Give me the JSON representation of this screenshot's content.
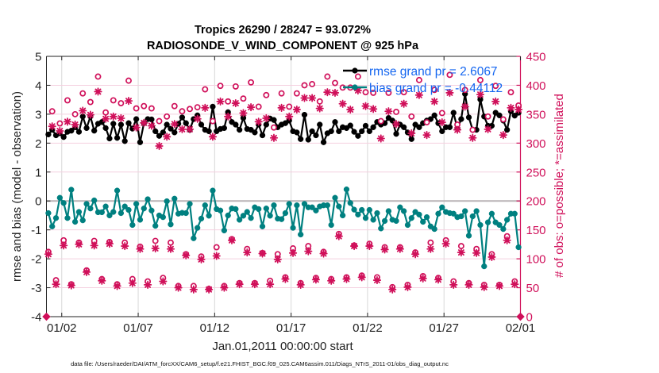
{
  "footer": "data file: /Users/raeder/DAI/ATM_forcXX/CAM6_setup/f.e21.FHIST_BGC.f09_025.CAM6assim.011/Diags_NTrS_2011-01/obs_diag_output.nc",
  "chart_data": {
    "type": "line",
    "title": [
      "Tropics 26290 / 28247 = 93.072%",
      "RADIOSONDE_V_WIND_COMPONENT @ 925 hPa"
    ],
    "xlabel": "Jan.01,2011 00:00:00 start",
    "ylabel": "rmse and bias (model - observation)",
    "ylabel_right": "# of obs: o=possible; *=assimilated",
    "xlim_days": [
      0,
      31
    ],
    "ylim": [
      -4,
      5
    ],
    "ylim_right": [
      0,
      450
    ],
    "x_ticks": [
      {
        "day": 1,
        "label": "01/02"
      },
      {
        "day": 6,
        "label": "01/07"
      },
      {
        "day": 11,
        "label": "01/12"
      },
      {
        "day": 16,
        "label": "01/17"
      },
      {
        "day": 21,
        "label": "01/22"
      },
      {
        "day": 26,
        "label": "01/27"
      },
      {
        "day": 31,
        "label": "02/01"
      }
    ],
    "y_ticks": [
      5,
      4,
      3,
      2,
      1,
      0,
      -1,
      -2,
      -3,
      -4
    ],
    "y_right_ticks": [
      450,
      400,
      350,
      300,
      250,
      200,
      150,
      100,
      50,
      0
    ],
    "grid": true,
    "zero_line": 0,
    "legend_position": "top-right",
    "legend": [
      {
        "series": "rmse",
        "label": "rmse grand pr = 2.6067"
      },
      {
        "series": "bias",
        "label": "bias grand pr = -0.44112"
      }
    ],
    "bin_center_first_day": 0.125,
    "bin_width_days": 0.25,
    "colors": {
      "rmse": "#000000",
      "bias": "#008080",
      "counts": "#d0105a",
      "legend_text": "#1466f0"
    },
    "series": [
      {
        "name": "rmse",
        "axis": "left",
        "style": "line+filled-circle",
        "values": [
          2.3,
          2.46,
          2.27,
          2.34,
          2.21,
          2.39,
          2.43,
          2.55,
          2.39,
          2.92,
          2.52,
          2.92,
          2.43,
          2.67,
          2.73,
          2.52,
          2.16,
          2.67,
          2.18,
          2.64,
          2.07,
          2.69,
          2.5,
          2.83,
          2.03,
          2.69,
          2.83,
          2.82,
          2.41,
          2.25,
          2.37,
          2.64,
          2.5,
          2.37,
          2.67,
          2.89,
          2.69,
          2.46,
          2.83,
          2.96,
          2.64,
          2.46,
          2.41,
          3.26,
          2.41,
          2.49,
          2.52,
          3.07,
          2.73,
          2.64,
          2.46,
          2.87,
          2.49,
          2.46,
          2.37,
          2.64,
          2.27,
          2.64,
          2.85,
          2.8,
          2.55,
          2.64,
          2.69,
          2.78,
          2.41,
          2.37,
          2.14,
          2.98,
          2.12,
          2.41,
          2.27,
          2.64,
          2.03,
          2.34,
          2.41,
          2.73,
          2.41,
          2.55,
          2.52,
          2.61,
          2.39,
          2.25,
          2.41,
          2.6,
          2.41,
          2.55,
          2.73,
          2.64,
          2.69,
          2.87,
          2.78,
          2.32,
          2.64,
          2.55,
          2.37,
          2.14,
          2.64,
          2.55,
          2.69,
          2.78,
          2.83,
          2.96,
          2.69,
          2.41,
          2.55,
          2.55,
          3.05,
          2.5,
          2.83,
          3.7,
          2.89,
          2.46,
          2.46,
          3.51,
          2.92,
          2.6,
          2.6,
          3.05,
          2.96,
          2.78,
          2.46,
          3.1,
          2.95,
          3.05
        ]
      },
      {
        "name": "bias",
        "axis": "left",
        "style": "line+filled-circle",
        "values": [
          -0.42,
          -0.88,
          -0.59,
          0.11,
          -0.07,
          -0.59,
          0.39,
          -0.72,
          -0.38,
          -0.67,
          -0.1,
          -0.26,
          0.02,
          -0.39,
          -0.39,
          -0.19,
          -0.5,
          -0.38,
          0.36,
          -0.42,
          -0.19,
          -0.31,
          -0.83,
          -0.1,
          -0.65,
          -0.26,
          0.06,
          -0.33,
          -0.86,
          -0.5,
          -0.56,
          -0.01,
          -0.81,
          0.08,
          -0.44,
          -0.41,
          -0.42,
          -0.1,
          -1.29,
          -0.93,
          -0.61,
          -0.15,
          -0.51,
          0.36,
          -0.28,
          -0.33,
          -1.02,
          -0.5,
          -0.26,
          -0.28,
          -0.65,
          -0.51,
          -0.38,
          -0.59,
          -0.22,
          -0.28,
          -0.88,
          -0.26,
          -0.51,
          -0.15,
          -0.61,
          -0.63,
          -0.42,
          -0.1,
          -0.93,
          -0.15,
          -1.16,
          -0.1,
          -0.22,
          -0.22,
          -0.33,
          -0.19,
          -0.15,
          -0.15,
          -0.83,
          0.11,
          -0.19,
          -0.5,
          0.4,
          -0.07,
          -0.3,
          -0.47,
          -0.31,
          -0.59,
          -0.31,
          -0.65,
          -0.42,
          -0.95,
          -0.69,
          -0.35,
          -0.65,
          -0.69,
          -0.22,
          -0.35,
          -0.83,
          -0.59,
          -0.38,
          -0.47,
          -0.72,
          -0.56,
          -0.88,
          -0.97,
          -0.44,
          -0.22,
          -0.38,
          -0.42,
          -0.44,
          -0.56,
          -0.53,
          -0.35,
          -1.2,
          -0.53,
          -0.35,
          -0.83,
          -2.26,
          -0.74,
          -0.44,
          -0.74,
          -0.83,
          -0.97,
          -0.65,
          -0.44,
          -0.44,
          -1.6
        ]
      },
      {
        "name": "possible",
        "axis": "right",
        "marker": "o",
        "values": [
          112,
          355,
          63,
          334,
          132,
          374,
          56,
          350,
          128,
          386,
          80,
          371,
          131,
          415,
          65,
          353,
          129,
          374,
          56,
          369,
          128,
          408,
          65,
          360,
          121,
          364,
          61,
          360,
          131,
          338,
          67,
          346,
          128,
          364,
          53,
          355,
          108,
          359,
          53,
          362,
          104,
          393,
          48,
          338,
          120,
          399,
          53,
          372,
          134,
          398,
          58,
          377,
          117,
          405,
          58,
          363,
          110,
          383,
          62,
          327,
          108,
          386,
          68,
          363,
          118,
          386,
          58,
          400,
          122,
          402,
          67,
          372,
          112,
          415,
          65,
          404,
          143,
          396,
          68,
          396,
          123,
          415,
          71,
          388,
          126,
          387,
          68,
          338,
          120,
          387,
          51,
          354,
          120,
          388,
          55,
          346,
          111,
          409,
          70,
          336,
          128,
          392,
          67,
          352,
          132,
          418,
          61,
          332,
          122,
          392,
          58,
          323,
          117,
          409,
          55,
          346,
          108,
          399,
          55,
          341,
          139,
          388,
          61,
          365
        ]
      },
      {
        "name": "assimilated",
        "axis": "right",
        "marker": "*",
        "values": [
          108,
          329,
          56,
          321,
          123,
          337,
          54,
          332,
          125,
          356,
          77,
          349,
          123,
          389,
          62,
          342,
          126,
          346,
          53,
          343,
          122,
          373,
          58,
          327,
          117,
          335,
          55,
          330,
          118,
          295,
          61,
          311,
          117,
          333,
          50,
          324,
          106,
          324,
          47,
          342,
          99,
          361,
          47,
          311,
          105,
          372,
          50,
          346,
          132,
          369,
          56,
          352,
          111,
          362,
          56,
          337,
          109,
          343,
          56,
          309,
          99,
          361,
          65,
          346,
          110,
          358,
          55,
          378,
          113,
          378,
          64,
          360,
          109,
          388,
          62,
          387,
          139,
          368,
          65,
          358,
          122,
          391,
          68,
          364,
          122,
          359,
          63,
          308,
          116,
          355,
          47,
          333,
          117,
          368,
          51,
          317,
          108,
          383,
          66,
          314,
          117,
          372,
          64,
          336,
          126,
          387,
          55,
          323,
          111,
          363,
          55,
          309,
          110,
          384,
          51,
          324,
          103,
          372,
          53,
          314,
          132,
          361,
          56,
          358
        ]
      }
    ],
    "edge_markers": [
      {
        "day": 0,
        "count": 0
      },
      {
        "day": 31,
        "count": 0
      }
    ]
  }
}
